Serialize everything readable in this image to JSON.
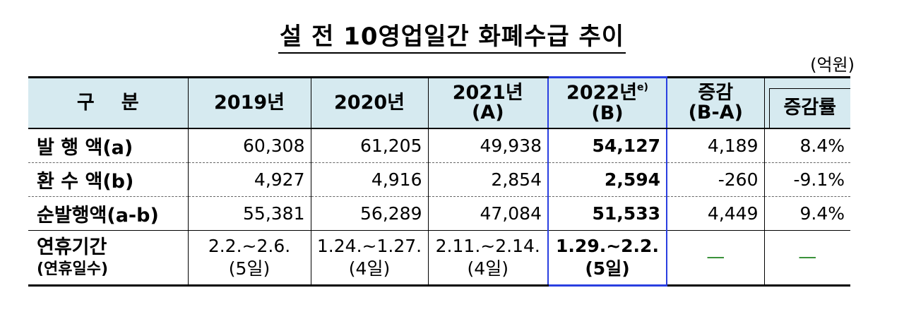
{
  "title": "설 전 10영업일간 화폐수급 추이",
  "unit": "(억원)",
  "header": {
    "category": "구분",
    "y2019": "2019년",
    "y2020": "2020년",
    "y2021_line1": "2021년",
    "y2021_line2": "(A)",
    "y2022_line1": "2022년",
    "y2022_sup": "e)",
    "y2022_line2": "(B)",
    "change_line1": "증감",
    "change_line2": "(B-A)",
    "rate": "증감률"
  },
  "rows": [
    {
      "label": "발 행 액(a)",
      "v2019": "60,308",
      "v2020": "61,205",
      "v2021": "49,938",
      "v2022": "54,127",
      "change": "4,189",
      "rate": "8.4%"
    },
    {
      "label": "환 수 액(b)",
      "v2019": "4,927",
      "v2020": "4,916",
      "v2021": "2,854",
      "v2022": "2,594",
      "change": "-260",
      "rate": "-9.1%"
    },
    {
      "label": "순발행액(a-b)",
      "v2019": "55,381",
      "v2020": "56,289",
      "v2021": "47,084",
      "v2022": "51,533",
      "change": "4,449",
      "rate": "9.4%"
    }
  ],
  "holiday": {
    "label_line1": "연휴기간",
    "label_line2": "(연휴일수)",
    "p2019": "2.2.~2.6.",
    "d2019": "(5일)",
    "p2020": "1.24.~1.27.",
    "d2020": "(4일)",
    "p2021": "2.11.~2.14.",
    "d2021": "(4일)",
    "p2022": "1.29.~2.2.",
    "d2022": "(5일)",
    "change": "—",
    "rate": "—"
  },
  "colors": {
    "header_bg": "#d6eaf0",
    "highlight": "#2a3fe0",
    "dash": "#2e8b2e"
  }
}
